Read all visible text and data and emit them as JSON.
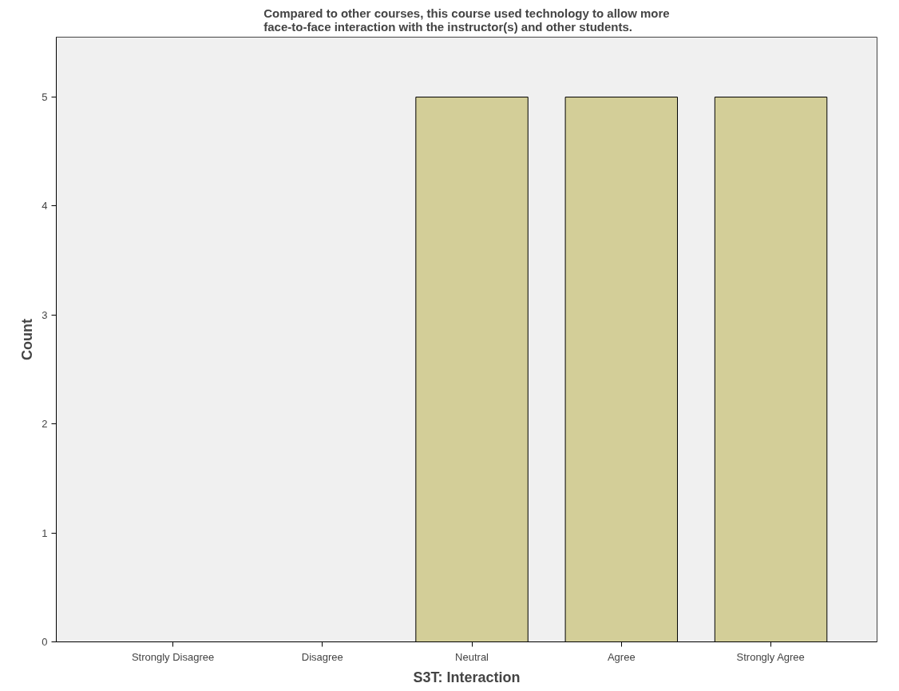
{
  "chart_data": {
    "type": "bar",
    "title": "Compared to other courses, this course used technology to allow more\nface-to-face interaction with the instructor(s) and other students.",
    "xlabel": "S3T: Interaction",
    "ylabel": "Count",
    "categories": [
      "Strongly Disagree",
      "Disagree",
      "Neutral",
      "Agree",
      "Strongly Agree"
    ],
    "values": [
      0,
      0,
      5,
      5,
      5
    ],
    "color": "#d3ce98",
    "ylim": [
      0,
      5.55
    ],
    "yticks": [
      0,
      1,
      2,
      3,
      4,
      5
    ],
    "grid": false
  }
}
